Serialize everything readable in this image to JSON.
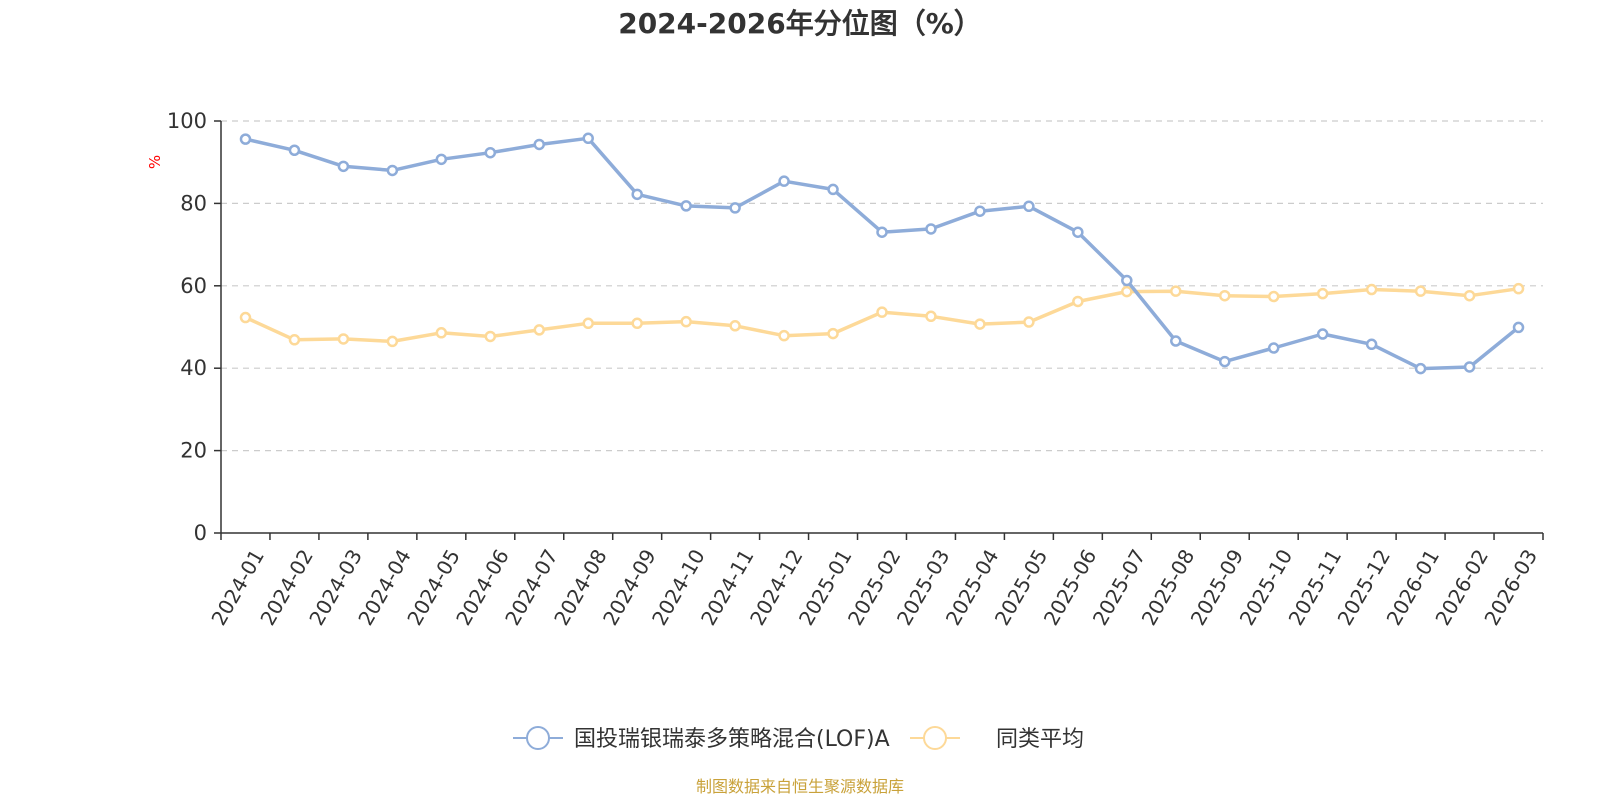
{
  "chart_data": {
    "type": "line",
    "title": "2024-2026年分位图（%）",
    "ylabel": "%",
    "ylim": [
      0,
      100
    ],
    "yticks": [
      0,
      20,
      40,
      60,
      80,
      100
    ],
    "grid": true,
    "legend_position": "bottom",
    "categories": [
      "2024-01",
      "2024-02",
      "2024-03",
      "2024-04",
      "2024-05",
      "2024-06",
      "2024-07",
      "2024-08",
      "2024-09",
      "2024-10",
      "2024-11",
      "2024-12",
      "2025-01",
      "2025-02",
      "2025-03",
      "2025-04",
      "2025-05",
      "2025-06",
      "2025-07",
      "2025-08",
      "2025-09",
      "2025-10",
      "2025-11",
      "2025-12",
      "2026-01",
      "2026-02",
      "2026-03"
    ],
    "series": [
      {
        "name": "国投瑞银瑞泰多策略混合(LOF)A",
        "color": "#8eacd9",
        "values": [
          95.6,
          92.9,
          89.0,
          88.0,
          90.7,
          92.3,
          94.3,
          95.8,
          82.2,
          79.4,
          78.9,
          85.4,
          83.4,
          73.0,
          73.8,
          78.1,
          79.3,
          73.0,
          61.3,
          46.6,
          41.6,
          44.9,
          48.3,
          45.8,
          39.9,
          40.3,
          49.9
        ]
      },
      {
        "name": "同类平均",
        "color": "#fdd998",
        "values": [
          52.3,
          46.9,
          47.1,
          46.5,
          48.6,
          47.7,
          49.3,
          50.9,
          50.9,
          51.3,
          50.3,
          47.9,
          48.4,
          53.6,
          52.6,
          50.7,
          51.2,
          56.2,
          58.6,
          58.7,
          57.6,
          57.4,
          58.1,
          59.1,
          58.7,
          57.6,
          59.3
        ]
      }
    ]
  },
  "source_text": "制图数据来自恒生聚源数据库",
  "colors": {
    "axis": "#333333",
    "grid": "#cccccc",
    "unit": "#ff0000",
    "source": "#c9a23a"
  }
}
